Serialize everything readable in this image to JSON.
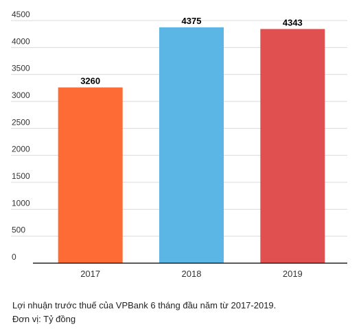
{
  "chart_data": {
    "type": "bar",
    "categories": [
      "2017",
      "2018",
      "2019"
    ],
    "values": [
      3260,
      4375,
      4343
    ],
    "data_labels": [
      "3260",
      "4375",
      "4343"
    ],
    "colors": [
      "#ff6b35",
      "#5bb6e6",
      "#e05050"
    ],
    "ylim": [
      0,
      4500
    ],
    "yticks": [
      0,
      500,
      1000,
      1500,
      2000,
      2500,
      3000,
      3500,
      4000,
      4500
    ],
    "grid": true,
    "title": "",
    "xlabel": "",
    "ylabel": ""
  },
  "caption": {
    "line1": "Lợi nhuận trước thuế của VPBank 6 tháng đầu năm từ 2017-2019.",
    "line2": "Đơn vị: Tỷ đồng"
  }
}
